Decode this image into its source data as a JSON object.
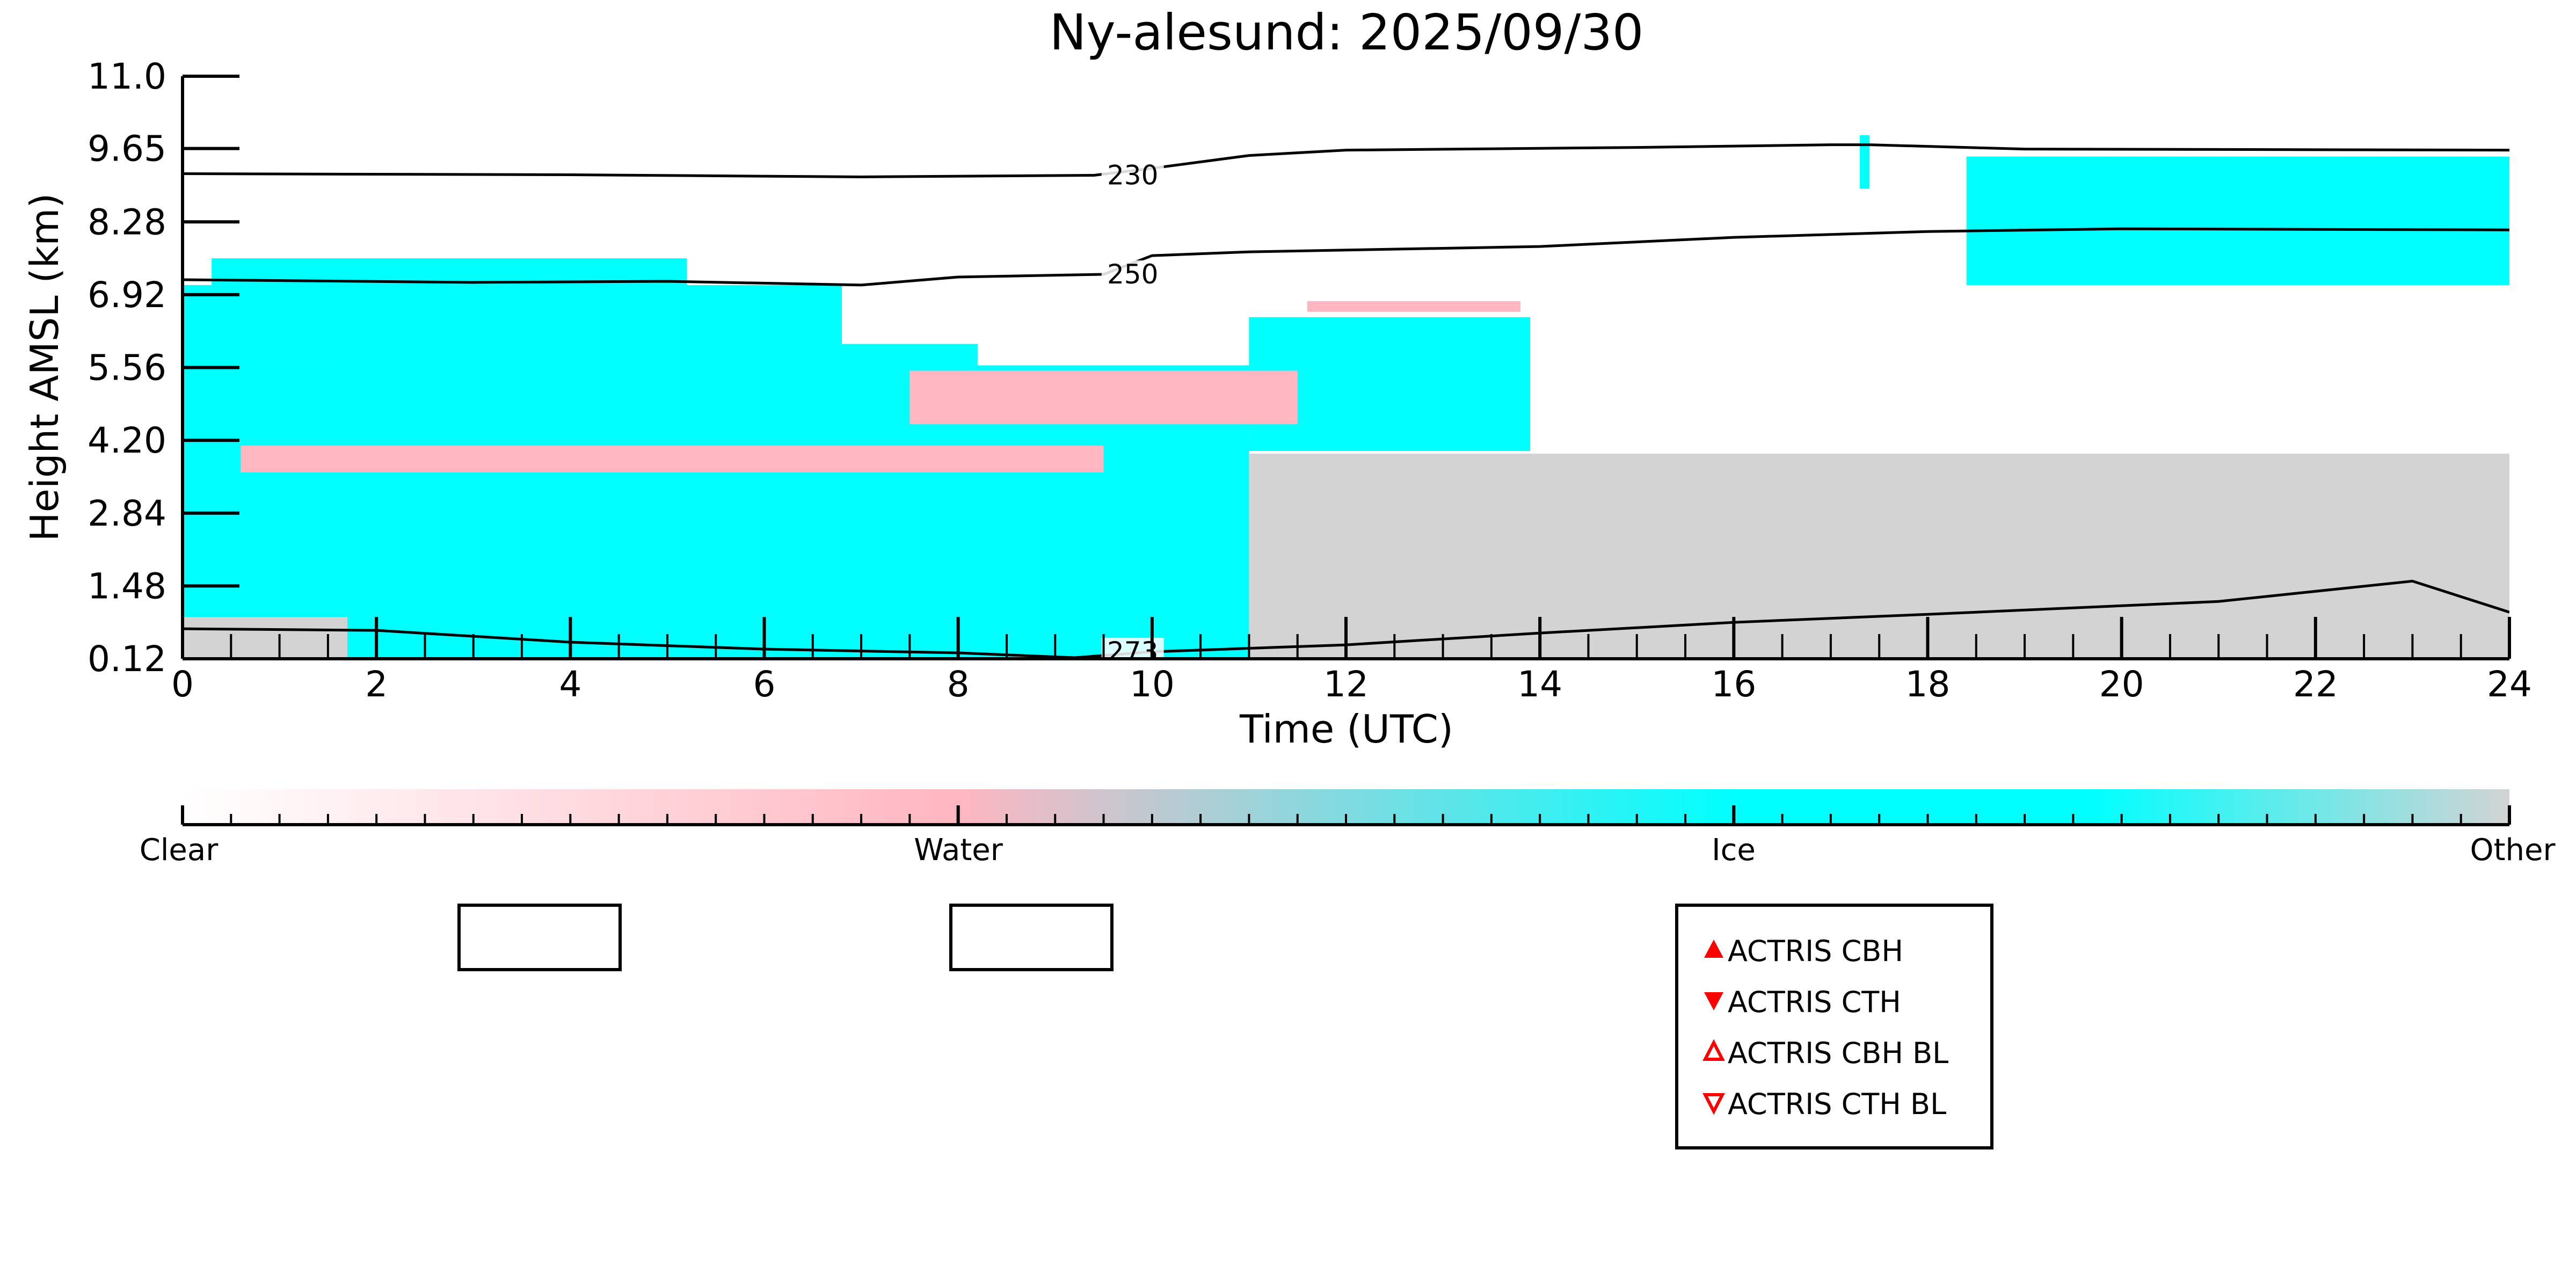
{
  "chart_data": {
    "type": "heatmap",
    "title": "Ny-alesund: 2025/09/30",
    "xlabel": "Time (UTC)",
    "ylabel": "Height AMSL (km)",
    "xlim": [
      0,
      24
    ],
    "ylim": [
      0.12,
      11.0
    ],
    "x_ticks": [
      "0",
      "2",
      "4",
      "6",
      "8",
      "10",
      "12",
      "14",
      "16",
      "18",
      "20",
      "22",
      "24"
    ],
    "y_ticks": [
      "0.12",
      "1.48",
      "2.84",
      "4.20",
      "5.56",
      "6.92",
      "8.28",
      "9.65",
      "11.0"
    ],
    "categories": [
      "Clear",
      "Water",
      "Ice",
      "Other"
    ],
    "colors": {
      "Clear": "#ffffff",
      "Water": "#ffb6c1",
      "Ice": "#00ffff",
      "Other": "#d3d3d3"
    },
    "regions": [
      {
        "class": "Ice",
        "x": [
          0.0,
          11.0
        ],
        "y": [
          0.12,
          5.6
        ]
      },
      {
        "class": "Ice",
        "x": [
          0.0,
          6.8
        ],
        "y": [
          5.6,
          7.1
        ]
      },
      {
        "class": "Ice",
        "x": [
          0.3,
          5.2
        ],
        "y": [
          7.1,
          7.6
        ]
      },
      {
        "class": "Ice",
        "x": [
          1.6,
          8.2
        ],
        "y": [
          5.0,
          6.0
        ]
      },
      {
        "class": "Ice",
        "x": [
          11.0,
          13.9
        ],
        "y": [
          4.0,
          6.5
        ]
      },
      {
        "class": "Ice",
        "x": [
          17.3,
          17.4
        ],
        "y": [
          8.9,
          9.9
        ]
      },
      {
        "class": "Ice",
        "x": [
          18.4,
          24.0
        ],
        "y": [
          7.1,
          9.5
        ]
      },
      {
        "class": "Water",
        "x": [
          0.6,
          9.5
        ],
        "y": [
          3.6,
          4.1
        ]
      },
      {
        "class": "Water",
        "x": [
          7.5,
          11.5
        ],
        "y": [
          4.5,
          5.5
        ]
      },
      {
        "class": "Water",
        "x": [
          11.6,
          13.8
        ],
        "y": [
          6.6,
          6.8
        ]
      },
      {
        "class": "Other",
        "x": [
          11.0,
          24.0
        ],
        "y": [
          0.12,
          3.95
        ]
      },
      {
        "class": "Other",
        "x": [
          0.0,
          1.7
        ],
        "y": [
          0.12,
          0.9
        ]
      }
    ],
    "temperature_contours": [
      {
        "label": "230",
        "x": [
          0,
          4,
          7,
          9.4,
          10,
          11,
          12,
          15,
          17,
          17.4,
          19,
          24
        ],
        "y": [
          9.18,
          9.16,
          9.12,
          9.15,
          9.28,
          9.52,
          9.62,
          9.67,
          9.72,
          9.72,
          9.64,
          9.62
        ]
      },
      {
        "label": "250",
        "x": [
          0,
          3,
          5,
          7,
          8,
          9.5,
          10,
          11,
          14,
          16,
          18,
          20,
          24
        ],
        "y": [
          7.2,
          7.15,
          7.17,
          7.1,
          7.25,
          7.3,
          7.65,
          7.72,
          7.82,
          7.99,
          8.1,
          8.15,
          8.13
        ]
      },
      {
        "label": "273",
        "x": [
          0,
          2,
          4,
          6,
          8,
          9.2,
          10,
          12,
          14,
          16,
          18,
          21,
          23,
          24
        ],
        "y": [
          0.68,
          0.65,
          0.43,
          0.3,
          0.23,
          0.14,
          0.25,
          0.38,
          0.6,
          0.8,
          0.95,
          1.19,
          1.57,
          0.99
        ]
      }
    ]
  },
  "colorbar": {
    "labels": [
      "Clear",
      "Water",
      "Ice",
      "Other"
    ]
  },
  "legend": {
    "items": [
      {
        "label": "ACTRIS CBH",
        "marker": "triangle-up-filled",
        "color": "#ff0000"
      },
      {
        "label": "ACTRIS CTH",
        "marker": "triangle-down-filled",
        "color": "#ff0000"
      },
      {
        "label": "ACTRIS CBH BL",
        "marker": "triangle-up-open",
        "color": "#ff0000"
      },
      {
        "label": "ACTRIS CTH BL",
        "marker": "triangle-down-open",
        "color": "#ff0000"
      }
    ]
  }
}
